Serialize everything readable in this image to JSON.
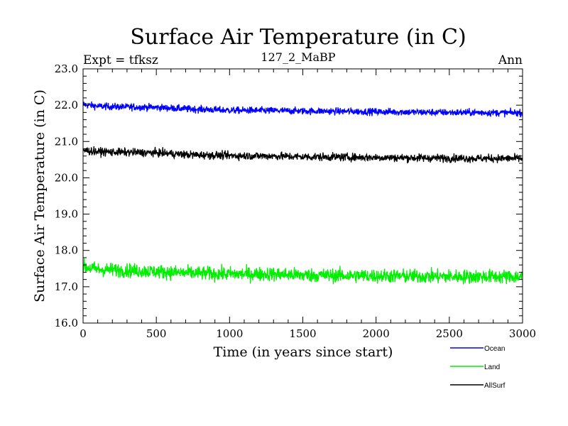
{
  "chart_data": {
    "type": "line",
    "title": "Surface Air Temperature (in C)",
    "subtitle": "127_2_MaBP",
    "left_annotation": "Expt = tfksz",
    "right_annotation": "Ann",
    "xlabel": "Time (in years since start)",
    "ylabel": "Surface Air Temperature (in C)",
    "xlim": [
      0,
      3000
    ],
    "ylim": [
      16.0,
      23.0
    ],
    "x_ticks": [
      0,
      500,
      1000,
      1500,
      2000,
      2500,
      3000
    ],
    "x_tick_labels": [
      "0",
      "500",
      "1000",
      "1500",
      "2000",
      "2500",
      "3000"
    ],
    "y_ticks": [
      16.0,
      17.0,
      18.0,
      19.0,
      20.0,
      21.0,
      22.0,
      23.0
    ],
    "y_tick_labels": [
      "16.0",
      "17.0",
      "18.0",
      "19.0",
      "20.0",
      "21.0",
      "22.0",
      "23.0"
    ],
    "grid": false,
    "series": [
      {
        "name": "Ocean",
        "color": "#0000ff",
        "x": [
          0,
          100,
          300,
          500,
          700,
          1000,
          1300,
          1500,
          2000,
          2500,
          3000
        ],
        "mean": [
          22.02,
          21.97,
          21.95,
          21.94,
          21.9,
          21.86,
          21.85,
          21.84,
          21.82,
          21.8,
          21.79
        ],
        "noise": 0.07
      },
      {
        "name": "Land",
        "color": "#00ee00",
        "x": [
          0,
          100,
          300,
          500,
          700,
          1000,
          1300,
          1500,
          2000,
          2500,
          3000
        ],
        "mean": [
          17.55,
          17.48,
          17.45,
          17.42,
          17.38,
          17.35,
          17.35,
          17.32,
          17.3,
          17.28,
          17.28
        ],
        "noise": 0.14
      },
      {
        "name": "AllSurf",
        "color": "#000000",
        "x": [
          0,
          100,
          300,
          500,
          700,
          1000,
          1300,
          1500,
          2000,
          2500,
          3000
        ],
        "mean": [
          20.76,
          20.72,
          20.7,
          20.69,
          20.64,
          20.61,
          20.6,
          20.58,
          20.56,
          20.54,
          20.53
        ],
        "noise": 0.08
      }
    ],
    "legend": {
      "placement": "bottom-right",
      "entries": [
        "Ocean",
        "Land",
        "AllSurf"
      ]
    }
  }
}
